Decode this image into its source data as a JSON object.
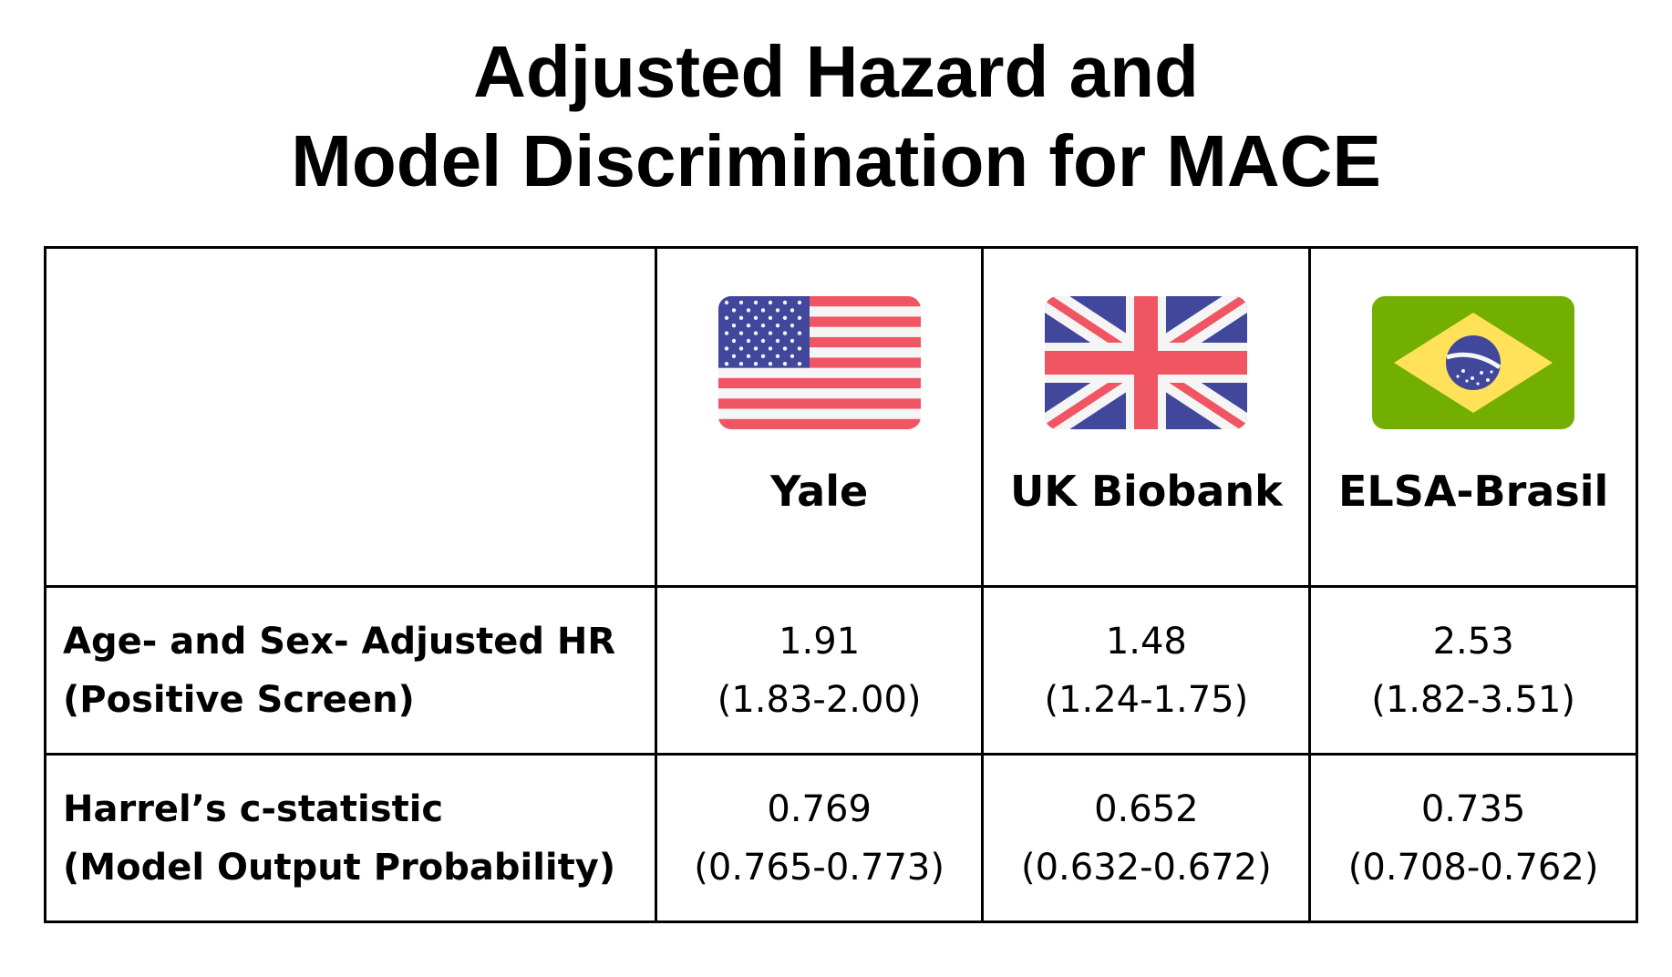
{
  "title": {
    "line1": "Adjusted Hazard and",
    "line2": "Model Discrimination for MACE"
  },
  "sites": [
    {
      "name": "Yale",
      "flag": "usa-flag-icon"
    },
    {
      "name": "UK Biobank",
      "flag": "uk-flag-icon"
    },
    {
      "name": "ELSA-Brasil",
      "flag": "brazil-flag-icon"
    }
  ],
  "rows": [
    {
      "label_line1": "Age- and Sex- Adjusted HR",
      "label_line2": "(Positive Screen)",
      "values": [
        {
          "estimate": "1.91",
          "ci": "(1.83-2.00)"
        },
        {
          "estimate": "1.48",
          "ci": "(1.24-1.75)"
        },
        {
          "estimate": "2.53",
          "ci": "(1.82-3.51)"
        }
      ]
    },
    {
      "label_line1": "Harrel’s c-statistic",
      "label_line2": "(Model Output Probability)",
      "values": [
        {
          "estimate": "0.769",
          "ci": "(0.765-0.773)"
        },
        {
          "estimate": "0.652",
          "ci": "(0.632-0.672)"
        },
        {
          "estimate": "0.735",
          "ci": "(0.708-0.762)"
        }
      ]
    }
  ],
  "colors": {
    "flag_red": "#f05564",
    "flag_blue": "#41479b",
    "flag_white": "#f5f5f5",
    "brazil_green": "#73af00",
    "brazil_yellow": "#ffe15a"
  }
}
